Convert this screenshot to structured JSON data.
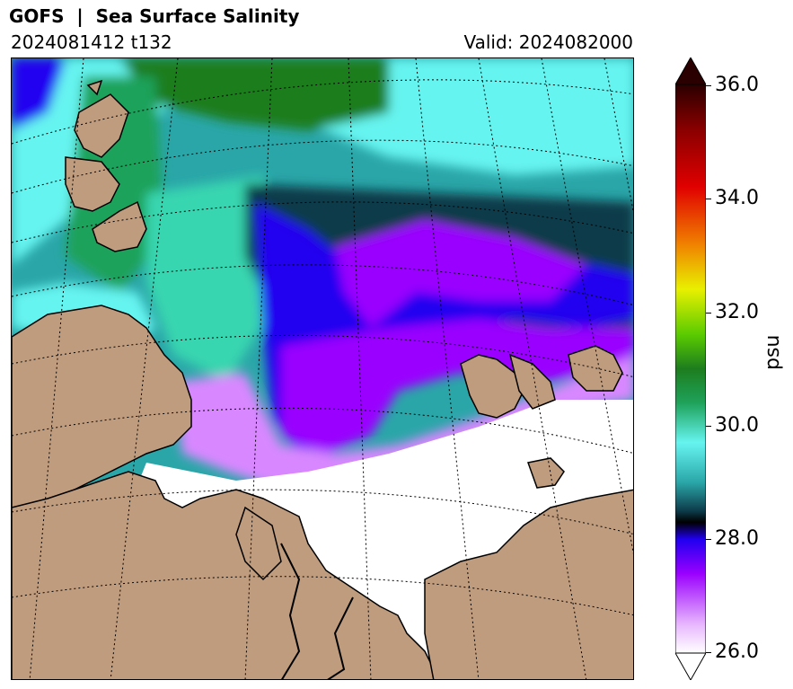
{
  "header": {
    "title": "GOFS  |  Sea Surface Salinity",
    "run": "2024081412 t132",
    "valid": "Valid: 2024082000"
  },
  "colorbar": {
    "unit": "psu",
    "ticks": [
      "36.0",
      "34.0",
      "32.0",
      "30.0",
      "28.0",
      "26.0"
    ],
    "min": 26.0,
    "max": 36.0,
    "extend": "both",
    "colors": {
      "land": "#c09c7e",
      "ice": "#ffffff",
      "low": "#f4e8ff",
      "purple": "#9a00ff",
      "blue": "#2000f0",
      "dark_teal": "#0d3b4a",
      "teal": "#2aa6a8",
      "cyan": "#66f4f0",
      "green": "#1fa25a",
      "dark_green": "#1d7d1e",
      "yellow": "#e8f000",
      "orange": "#f08000",
      "red": "#d00000",
      "dark": "#2a0000"
    }
  }
}
